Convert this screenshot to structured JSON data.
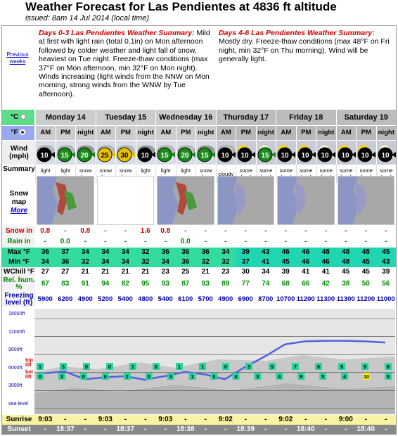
{
  "title": "Weather Forecast for Las Pendientes at 4836 ft altitude",
  "issued": "issued: 8am 14 Jul 2014 (local time)",
  "previous_weeks": "Previous weeks",
  "summary1": {
    "head": "Days 0-3 Las Pendientes Weather Summary:",
    "text": " Mild at first with light rain (total 0.1in) on Mon afternoon followed by colder weather and light fall of snow, heaviest on Tue night. Freeze-thaw conditions (max 37°F on Mon afternoon, min 32°F on Mon night). Winds increasing (light winds from the NNW on Mon morning, strong winds from the WNW by Tue afternoon)."
  },
  "summary2": {
    "head": "Days 4-6 Las Pendientes Weather Summary:",
    "text": " Mostly dry. Freeze-thaw conditions (max 48°F on Fri night, min 32°F on Thu morning). Wind will be generally light."
  },
  "units": {
    "c": "°C",
    "f": "°F"
  },
  "days": [
    "Monday 14",
    "Tuesday 15",
    "Wednesday 16",
    "Thursday 17",
    "Friday 18",
    "Saturday 19"
  ],
  "periods": [
    "AM",
    "PM",
    "night",
    "AM",
    "PM",
    "night",
    "AM",
    "PM",
    "night",
    "AM",
    "PM",
    "night",
    "AM",
    "PM",
    "night",
    "AM",
    "PM",
    "night"
  ],
  "labels": {
    "wind": "Wind (mph)",
    "summary": "Summary",
    "snowmap": "Snow map",
    "more": "More",
    "snow_in": "Snow in",
    "rain_in": "Rain in",
    "max": "Max °F",
    "min": "Min °F",
    "wchill": "WChill °F",
    "relhum": "Rel. hum. %",
    "freezing": "Freezing level (ft)",
    "sunrise": "Sunrise",
    "sunset": "Sunset"
  },
  "wind": [
    "10",
    "15",
    "20",
    "25",
    "30",
    "10",
    "15",
    "20",
    "15",
    "10",
    "10",
    "15",
    "10",
    "10",
    "10",
    "10",
    "10",
    "10"
  ],
  "wind_colors": [
    "#000",
    "#1a8a1a",
    "#1a8a1a",
    "#e8c000",
    "#e8c000",
    "#000",
    "#1a8a1a",
    "#1a8a1a",
    "#1a8a1a",
    "#000",
    "#000",
    "#1a8a1a",
    "#000",
    "#000",
    "#000",
    "#000",
    "#000",
    "#000"
  ],
  "summaries": [
    "light snow",
    "light rain",
    "snow shwrs",
    "snow shwrs",
    "snow shwrs",
    "light snow",
    "light snow",
    "light snow",
    "snow shwrs",
    "cloudy",
    "some clouds",
    "some clouds",
    "some clouds",
    "some clouds",
    "some clouds",
    "some clouds",
    "some clouds",
    "some clouds"
  ],
  "snow_in": [
    "0.8",
    "-",
    "0.8",
    "-",
    "-",
    "1.6",
    "0.8",
    "-",
    "-",
    "-",
    "-",
    "-",
    "-",
    "-",
    "-",
    "-",
    "-",
    "-"
  ],
  "rain_in": [
    "-",
    "0.0",
    "-",
    "-",
    "-",
    "-",
    "-",
    "0.0",
    "-",
    "-",
    "-",
    "-",
    "-",
    "-",
    "-",
    "-",
    "-",
    "-"
  ],
  "max": [
    "36",
    "37",
    "34",
    "34",
    "34",
    "32",
    "36",
    "36",
    "36",
    "34",
    "39",
    "43",
    "46",
    "46",
    "48",
    "48",
    "48",
    "45"
  ],
  "min": [
    "34",
    "36",
    "32",
    "34",
    "34",
    "32",
    "34",
    "36",
    "32",
    "32",
    "37",
    "41",
    "45",
    "46",
    "46",
    "48",
    "45",
    "43"
  ],
  "wchill": [
    "27",
    "27",
    "21",
    "21",
    "21",
    "21",
    "23",
    "25",
    "21",
    "23",
    "30",
    "34",
    "39",
    "41",
    "41",
    "45",
    "45",
    "39"
  ],
  "relhum": [
    "87",
    "83",
    "91",
    "94",
    "82",
    "95",
    "93",
    "87",
    "93",
    "89",
    "77",
    "74",
    "68",
    "66",
    "42",
    "38",
    "50",
    "56"
  ],
  "freezing": [
    "5900",
    "6200",
    "4900",
    "5200",
    "5400",
    "4800",
    "5400",
    "6100",
    "5700",
    "4900",
    "6900",
    "8700",
    "10700",
    "11200",
    "11300",
    "11300",
    "11200",
    "11000"
  ],
  "graph": {
    "y_labels": [
      "15000ft",
      "12000ft",
      "9000ft",
      "6000ft",
      "3000ft",
      "sea-level"
    ],
    "top_lift_label": "top lift",
    "bot_lift_label": "bot lift",
    "top_lift_winds": [
      "1",
      "3",
      "0",
      "0",
      "1",
      "0",
      "1",
      "1",
      "0",
      "3",
      "5",
      "7",
      "8",
      "9",
      "9",
      "8"
    ],
    "bot_lift_winds": [
      "0",
      "3",
      "0",
      "0",
      "2",
      "0",
      "3",
      "1",
      "0",
      "4",
      "3",
      "4",
      "9",
      "5",
      "4",
      "10",
      "5"
    ],
    "freezing_line_color": "#5060e0"
  },
  "sunrise": [
    "9:03",
    "-",
    "-",
    "9:03",
    "-",
    "-",
    "9:03",
    "-",
    "-",
    "9:02",
    "-",
    "-",
    "9:02",
    "-",
    "-",
    "9:00",
    "-",
    "-"
  ],
  "sunset": [
    "-",
    "18:37",
    "-",
    "-",
    "18:37",
    "-",
    "-",
    "18:38",
    "-",
    "-",
    "18:39",
    "-",
    "-",
    "18:40",
    "-",
    "-",
    "18:40",
    "-"
  ]
}
